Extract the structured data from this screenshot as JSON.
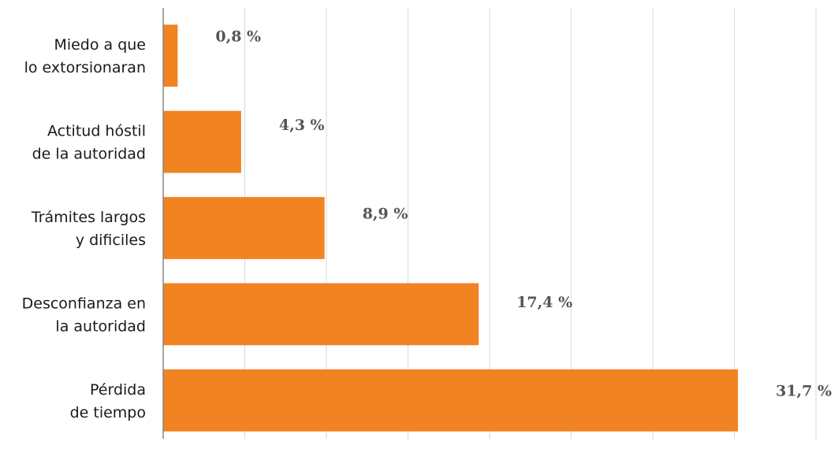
{
  "chart_data": {
    "type": "bar",
    "orientation": "horizontal",
    "categories": [
      [
        "Miedo a que",
        "lo extorsionaran"
      ],
      [
        "Actitud hóstil",
        "de la autoridad"
      ],
      [
        "Trámites largos",
        "y dificiles"
      ],
      [
        "Desconfianza en",
        "la autoridad"
      ],
      [
        "Pérdida",
        "de tiempo"
      ]
    ],
    "values": [
      0.8,
      4.3,
      8.9,
      17.4,
      31.7
    ],
    "value_labels": [
      "0,8 %",
      "4,3 %",
      "8,9 %",
      "17,4 %",
      "31,7 %"
    ],
    "color": "#f28323",
    "xlim": [
      0,
      37
    ],
    "xticks": [
      0,
      4.5,
      9,
      13.5,
      18,
      22.5,
      27,
      31.5,
      36
    ],
    "grid": true
  }
}
